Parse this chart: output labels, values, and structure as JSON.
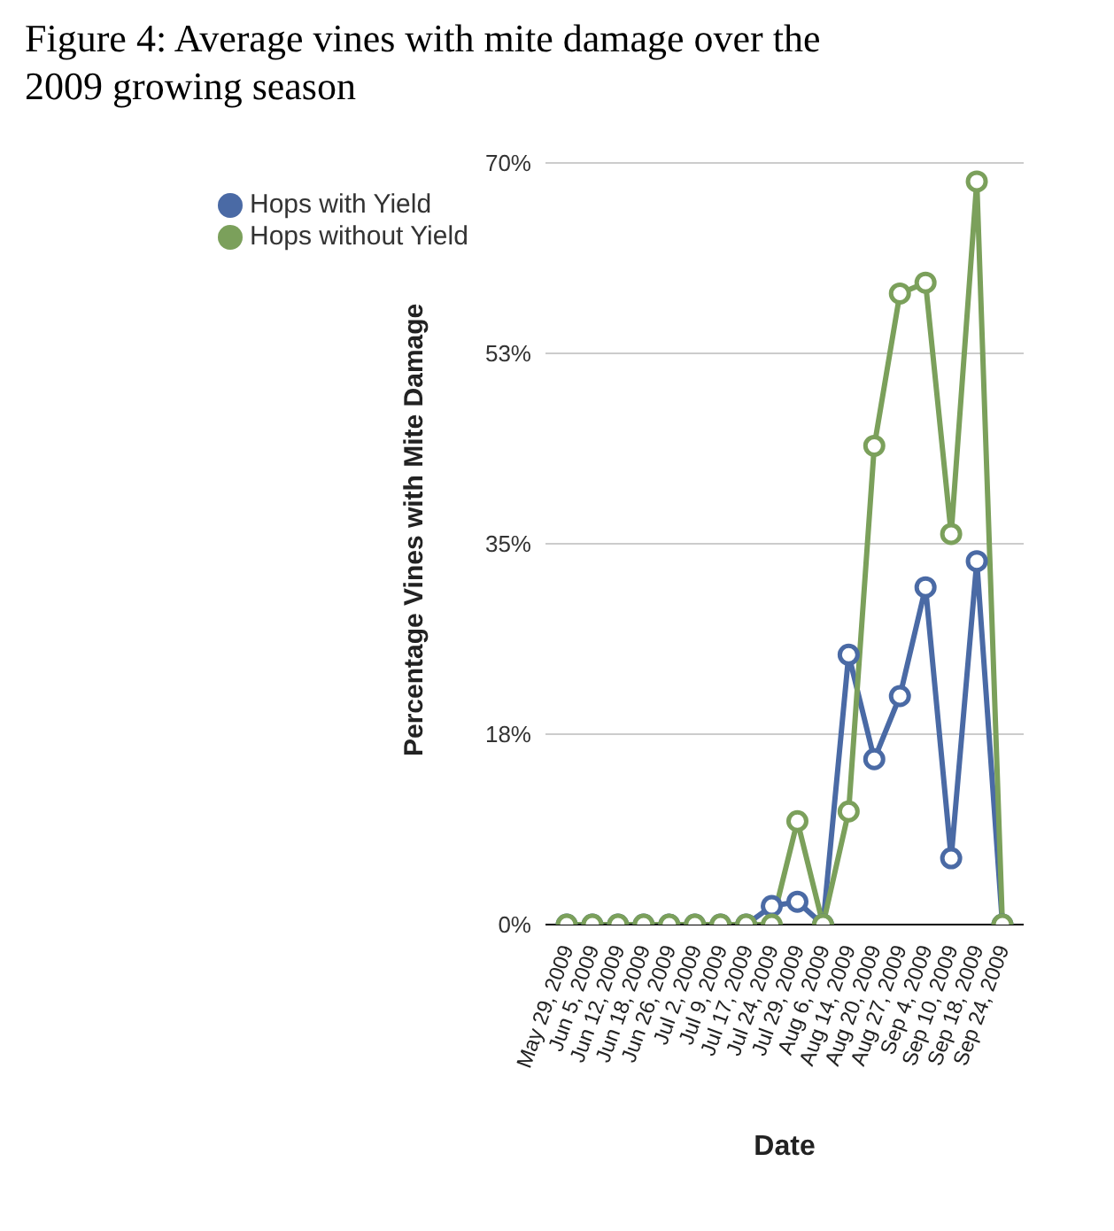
{
  "chart_data": {
    "type": "line",
    "title": "Figure 4: Average vines with mite damage over the 2009 growing season",
    "xlabel": "Date",
    "ylabel": "Percentage Vines with Mite Damage",
    "categories": [
      "May 29, 2009",
      "Jun 5, 2009",
      "Jun 12, 2009",
      "Jun 18, 2009",
      "Jun 26, 2009",
      "Jul 2, 2009",
      "Jul 9, 2009",
      "Jul 17, 2009",
      "Jul 24, 2009",
      "Jul 29, 2009",
      "Aug 6, 2009",
      "Aug 14, 2009",
      "Aug 20, 2009",
      "Aug 27, 2009",
      "Sep 4, 2009",
      "Sep 10, 2009",
      "Sep 18, 2009",
      "Sep 24, 2009"
    ],
    "series": [
      {
        "name": "Hops with Yield",
        "color": "#4a6aa5",
        "values": [
          0,
          0,
          0,
          0,
          0,
          0,
          0,
          0,
          1.7,
          2.1,
          0,
          24.8,
          15.2,
          21,
          31,
          6.1,
          33.4,
          0
        ]
      },
      {
        "name": "Hops without Yield",
        "color": "#7ba05b",
        "values": [
          0,
          0,
          0,
          0,
          0,
          0,
          0,
          0,
          0,
          9.5,
          0,
          10.4,
          44,
          58,
          59,
          35.9,
          68.3,
          0
        ]
      }
    ],
    "ylim": [
      0,
      70
    ],
    "yticks": [
      {
        "value": 0,
        "label": "0%"
      },
      {
        "value": 17.5,
        "label": "18%"
      },
      {
        "value": 35,
        "label": "35%"
      },
      {
        "value": 52.5,
        "label": "53%"
      },
      {
        "value": 70,
        "label": "70%"
      }
    ],
    "grid": "y",
    "legend": "top left",
    "marker": "circle",
    "line_style": "solid"
  }
}
